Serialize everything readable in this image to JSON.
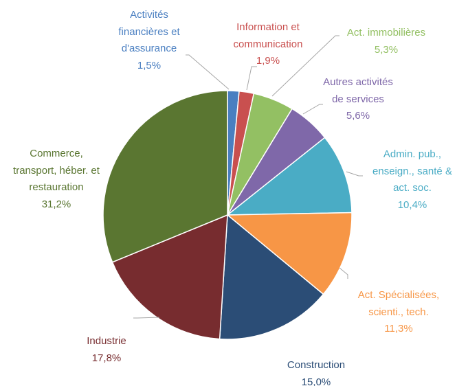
{
  "chart_data": {
    "type": "pie",
    "categories": [
      "Activités financières et d'assurance",
      "Information et communication",
      "Act. immobilières",
      "Autres activités de services",
      "Admin. pub., enseign., santé & act. soc.",
      "Act. Spécialisées, scienti., tech.",
      "Construction",
      "Industrie",
      "Commerce, transport, héber. et restauration"
    ],
    "values": [
      1.5,
      1.9,
      5.3,
      5.6,
      10.4,
      11.3,
      15.0,
      17.8,
      31.2
    ],
    "value_labels": [
      "1,5%",
      "1,9%",
      "5,3%",
      "5,6%",
      "10,4%",
      "11,3%",
      "15,0%",
      "17,8%",
      "31,2%"
    ],
    "colors": [
      "#4a7fc1",
      "#c9504f",
      "#93c063",
      "#7f68a9",
      "#4aacc5",
      "#f79646",
      "#2b4d76",
      "#772c2f",
      "#5a7631"
    ]
  }
}
